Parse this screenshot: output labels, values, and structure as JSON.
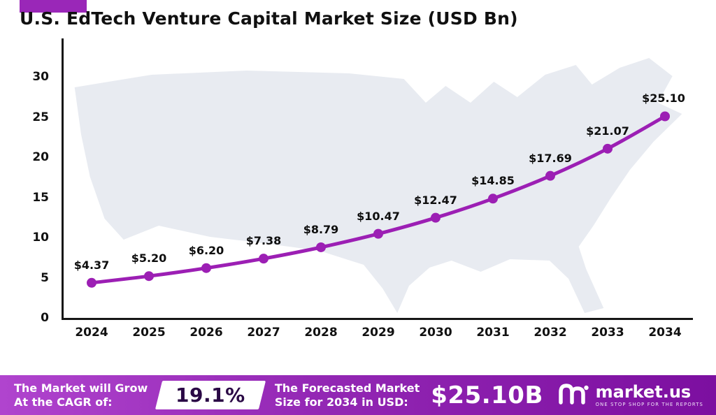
{
  "page": {
    "title": "U.S. EdTech Venture Capital Market Size (USD Bn)"
  },
  "colors": {
    "line": "#9c1fb4",
    "marker": "#9c1fb4",
    "accent": "#9a27b8",
    "map": "#e8ebf1",
    "axis": "#161616",
    "cagr_text": "#2a0845"
  },
  "chart_data": {
    "type": "line",
    "title": "U.S. EdTech Venture Capital Market Size (USD Bn)",
    "categories": [
      "2024",
      "2025",
      "2026",
      "2027",
      "2028",
      "2029",
      "2030",
      "2031",
      "2032",
      "2033",
      "2034"
    ],
    "values": [
      4.37,
      5.2,
      6.2,
      7.38,
      8.79,
      10.47,
      12.47,
      14.85,
      17.69,
      21.07,
      25.1
    ],
    "point_labels": [
      "$4.37",
      "$5.20",
      "$6.20",
      "$7.38",
      "$8.79",
      "$10.47",
      "$12.47",
      "$14.85",
      "$17.69",
      "$21.07",
      "$25.10"
    ],
    "xlabel": "",
    "ylabel": "",
    "ylim": [
      0,
      30
    ],
    "yticks": [
      0,
      5,
      10,
      15,
      20,
      25,
      30
    ],
    "grid": false,
    "legend": false,
    "background": "us-map-silhouette"
  },
  "banner": {
    "cagr_label": [
      "The Market will Grow",
      "At the CAGR of:"
    ],
    "cagr_value": "19.1%",
    "forecast_label": [
      "The Forecasted Market",
      "Size for 2034 in USD:"
    ],
    "forecast_value": "$25.10B",
    "brand_name": "market.us",
    "brand_tagline": "ONE STOP SHOP FOR THE REPORTS"
  }
}
